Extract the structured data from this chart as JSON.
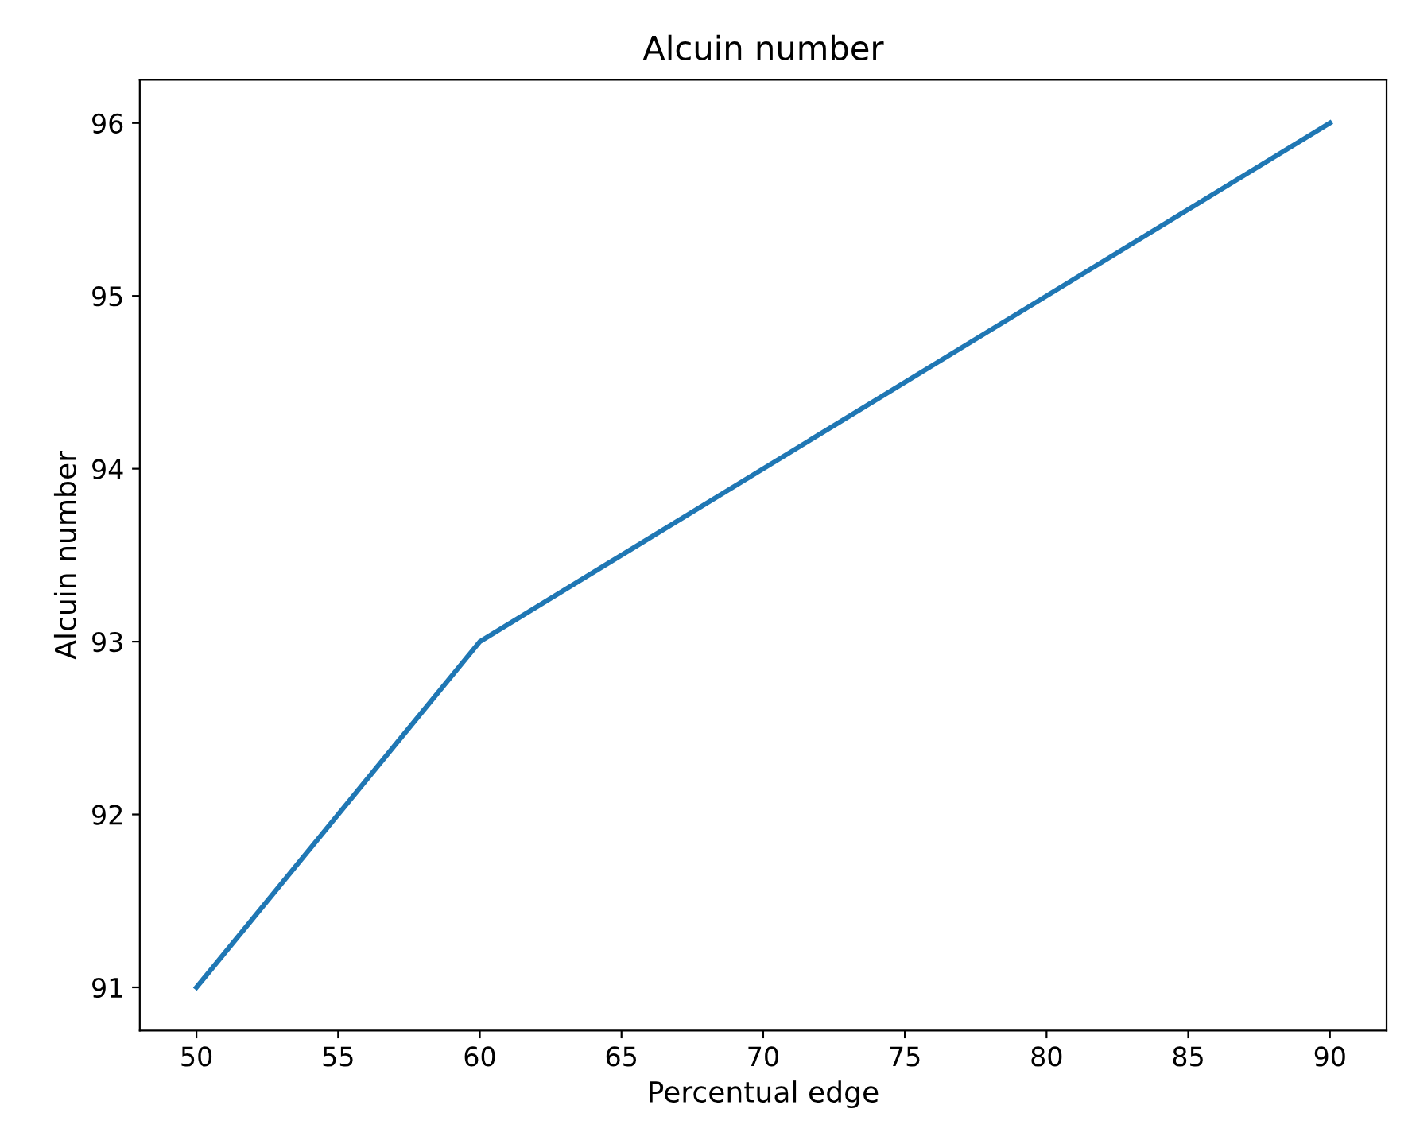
{
  "chart_data": {
    "type": "line",
    "title": "Alcuin number",
    "xlabel": "Percentual edge",
    "ylabel": "Alcuin number",
    "x": [
      50,
      60,
      90
    ],
    "series": [
      {
        "color": "#1f77b4",
        "values": [
          91,
          93,
          96
        ]
      }
    ],
    "xlim": [
      48,
      92
    ],
    "ylim": [
      90.75,
      96.25
    ],
    "xticks": [
      50,
      55,
      60,
      65,
      70,
      75,
      80,
      85,
      90
    ],
    "yticks": [
      91,
      92,
      93,
      94,
      95,
      96
    ],
    "grid": false
  }
}
